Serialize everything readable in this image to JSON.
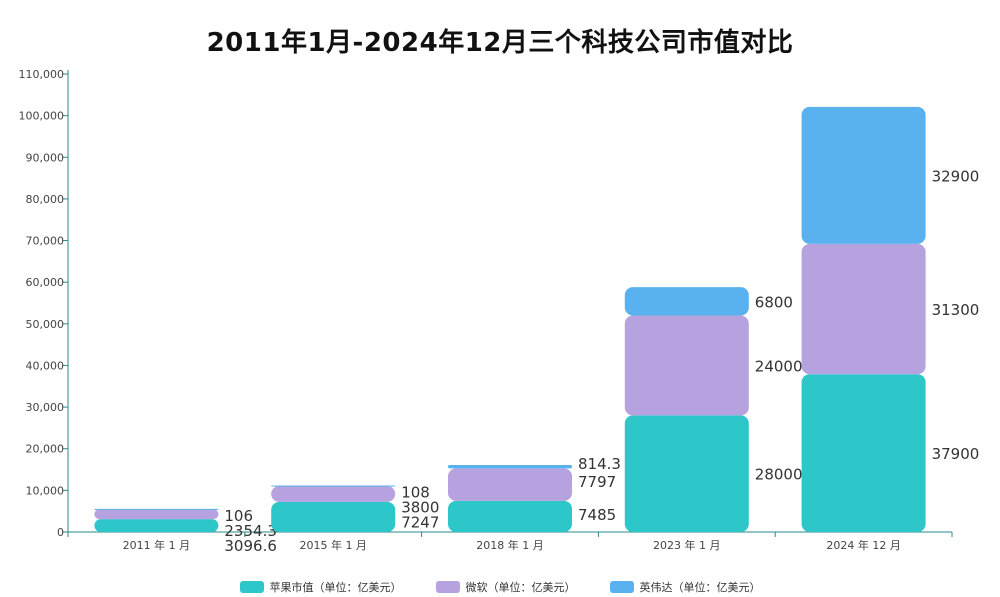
{
  "title": "2011年1月-2024年12月三个科技公司市值对比",
  "colors": {
    "apple": "#2ec7c9",
    "microsoft": "#b6a2de",
    "nvidia": "#5ab1ef",
    "axis": "#2a8a8a",
    "tick_text": "#444444",
    "value_text": "#333333"
  },
  "chart_data": {
    "type": "bar",
    "stacked": true,
    "title": "2011年1月-2024年12月三个科技公司市值对比",
    "categories": [
      "2011 年 1 月",
      "2015 年 1 月",
      "2018 年 1 月",
      "2023 年 1 月",
      "2024 年 12 月"
    ],
    "series": [
      {
        "name": "苹果市值（单位：亿美元）",
        "values": [
          3096.6,
          7247,
          7485,
          28000,
          37900
        ],
        "labels": [
          "3096.6",
          "7247",
          "7485",
          "28000",
          "37900"
        ]
      },
      {
        "name": "微软（单位：亿美元）",
        "values": [
          2354.3,
          3800,
          7797,
          24000,
          31300
        ],
        "labels": [
          "2354.3",
          "3800",
          "7797",
          "24000",
          "31300"
        ]
      },
      {
        "name": "英伟达（单位：亿美元）",
        "values": [
          106,
          108,
          814.3,
          6800,
          32900
        ],
        "labels": [
          "106",
          "108",
          "814.3",
          "6800",
          "32900"
        ]
      }
    ],
    "ylim": [
      0,
      110000
    ],
    "yticks": [
      0,
      10000,
      20000,
      30000,
      40000,
      50000,
      60000,
      70000,
      80000,
      90000,
      100000,
      110000
    ],
    "ytick_labels": [
      "0",
      "10,000",
      "20,000",
      "30,000",
      "40,000",
      "50,000",
      "60,000",
      "70,000",
      "80,000",
      "90,000",
      "100,000",
      "110,000"
    ],
    "grid": false,
    "legend_position": "bottom"
  }
}
